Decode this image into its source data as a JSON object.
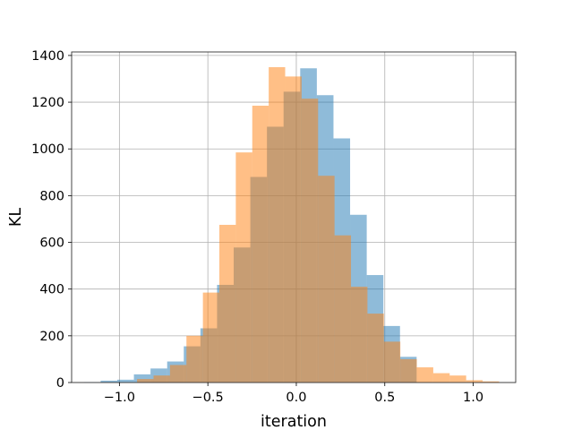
{
  "chart_data": {
    "type": "histogram",
    "xlabel": "iteration",
    "ylabel": "KL",
    "xlim": [
      -1.27,
      1.24
    ],
    "ylim": [
      0,
      1415
    ],
    "grid": true,
    "x_ticks": [
      -1.0,
      -0.5,
      0.0,
      0.5,
      1.0
    ],
    "x_tick_labels": [
      "−1.0",
      "−0.5",
      "0.0",
      "0.5",
      "1.0"
    ],
    "y_ticks": [
      0,
      200,
      400,
      600,
      800,
      1000,
      1200,
      1400
    ],
    "y_tick_labels": [
      "0",
      "200",
      "400",
      "600",
      "800",
      "1000",
      "1200",
      "1400"
    ],
    "series": [
      {
        "color": "#1f77b4",
        "alpha": 0.5,
        "bin_edges": [
          -1.2,
          -1.106,
          -1.012,
          -0.918,
          -0.824,
          -0.73,
          -0.636,
          -0.542,
          -0.448,
          -0.354,
          -0.26,
          -0.166,
          -0.072,
          0.022,
          0.116,
          0.21,
          0.304,
          0.398,
          0.492,
          0.586,
          0.68
        ],
        "counts": [
          2,
          8,
          12,
          35,
          60,
          90,
          155,
          232,
          418,
          578,
          880,
          1095,
          1245,
          1345,
          1230,
          1045,
          718,
          460,
          242,
          110
        ]
      },
      {
        "color": "#ff7f0e",
        "alpha": 0.5,
        "bin_edges": [
          -0.9,
          -0.807,
          -0.714,
          -0.621,
          -0.528,
          -0.435,
          -0.342,
          -0.249,
          -0.156,
          -0.063,
          0.03,
          0.123,
          0.216,
          0.309,
          0.402,
          0.495,
          0.588,
          0.681,
          0.774,
          0.867,
          0.96,
          1.053,
          1.146
        ],
        "counts": [
          15,
          30,
          75,
          200,
          385,
          675,
          985,
          1185,
          1350,
          1310,
          1215,
          885,
          630,
          410,
          295,
          175,
          100,
          65,
          40,
          30,
          10,
          5
        ]
      }
    ]
  }
}
